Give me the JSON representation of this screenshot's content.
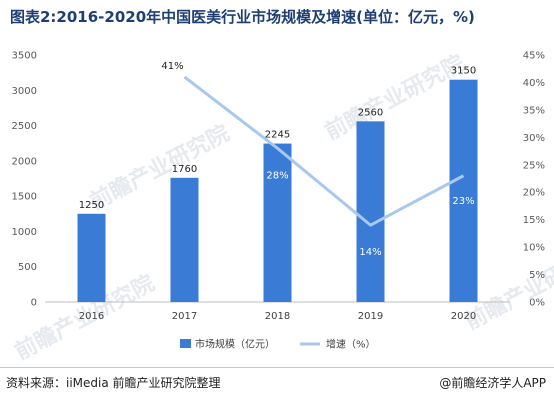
{
  "title": "图表2:2016-2020年中国医美行业市场规模及增速(单位：亿元，%)",
  "footer": {
    "source": "资料来源：iiMedia 前瞻产业研究院整理",
    "brand": "@前瞻经济学人APP"
  },
  "watermark": "前瞻产业研究院",
  "chart_data": {
    "type": "bar",
    "categories": [
      "2016",
      "2017",
      "2018",
      "2019",
      "2020"
    ],
    "series": [
      {
        "name": "市场规模（亿元）",
        "type": "bar",
        "axis": "left",
        "color": "#3a7bd5",
        "values": [
          1250,
          1760,
          2245,
          2560,
          3150
        ],
        "labels": [
          "1250",
          "1760",
          "2245",
          "2560",
          "3150"
        ]
      },
      {
        "name": "增速（%）",
        "type": "line",
        "axis": "right",
        "color": "#a9c8ef",
        "x": [
          "2017",
          "2018",
          "2019",
          "2020"
        ],
        "values": [
          41,
          28,
          14,
          23
        ],
        "labels": [
          "41%",
          "28%",
          "14%",
          "23%"
        ]
      }
    ],
    "y_left": {
      "min": 0,
      "max": 3500,
      "ticks": [
        "0",
        "500",
        "1000",
        "1500",
        "2000",
        "2500",
        "3000",
        "3500"
      ]
    },
    "y_right": {
      "min": 0,
      "max": 45,
      "ticks": [
        "0%",
        "5%",
        "10%",
        "15%",
        "20%",
        "25%",
        "30%",
        "35%",
        "40%",
        "45%"
      ]
    },
    "legend_position": "bottom",
    "grid": false
  }
}
